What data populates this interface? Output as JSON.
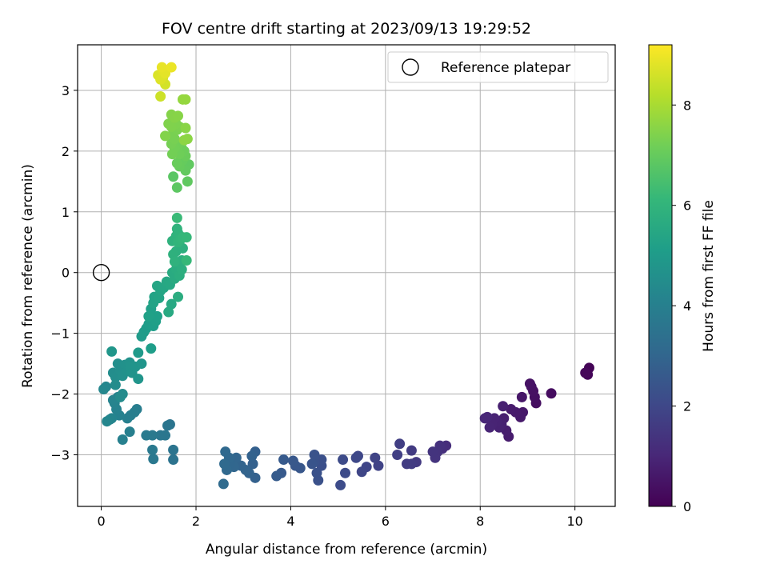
{
  "figure": {
    "title": "FOV centre drift starting at 2023/09/13 19:29:52",
    "xlabel": "Angular distance from reference (arcmin)",
    "ylabel": "Rotation from reference (arcmin)",
    "colorbar_label": "Hours from first FF file",
    "legend_label": "Reference platepar"
  },
  "chart_data": {
    "type": "scatter",
    "title": "FOV centre drift starting at 2023/09/13 19:29:52",
    "xlabel": "Angular distance from reference (arcmin)",
    "ylabel": "Rotation from reference (arcmin)",
    "xlim": [
      -0.5,
      10.85
    ],
    "ylim": [
      -3.85,
      3.75
    ],
    "xticks": [
      0,
      2,
      4,
      6,
      8,
      10
    ],
    "yticks": [
      -3,
      -2,
      -1,
      0,
      1,
      2,
      3
    ],
    "grid": true,
    "legend": {
      "position": "top-right",
      "entries": [
        "Reference platepar"
      ]
    },
    "reference_point": {
      "x": 0,
      "y": 0,
      "marker": "open-circle",
      "label": "Reference platepar"
    },
    "colorbar": {
      "label": "Hours from first FF file",
      "min": 0,
      "max": 9.2,
      "ticks": [
        0,
        2,
        4,
        6,
        8
      ],
      "colormap": "viridis"
    },
    "colormap_stops": [
      "#440154",
      "#482878",
      "#3e4989",
      "#31688e",
      "#26828e",
      "#1f9e89",
      "#35b779",
      "#6ece58",
      "#b5de2b",
      "#fde725"
    ],
    "points": [
      [
        10.3,
        -1.57,
        0.05
      ],
      [
        10.27,
        -1.68,
        0.1
      ],
      [
        10.22,
        -1.65,
        0.15
      ],
      [
        9.5,
        -1.99,
        0.3
      ],
      [
        9.18,
        -2.15,
        0.35
      ],
      [
        9.15,
        -2.05,
        0.38
      ],
      [
        9.12,
        -1.95,
        0.4
      ],
      [
        9.08,
        -1.88,
        0.42
      ],
      [
        9.05,
        -1.83,
        0.45
      ],
      [
        8.88,
        -2.05,
        0.55
      ],
      [
        8.9,
        -2.3,
        0.6
      ],
      [
        8.85,
        -2.38,
        0.62
      ],
      [
        8.75,
        -2.3,
        0.65
      ],
      [
        8.65,
        -2.25,
        0.68
      ],
      [
        8.6,
        -2.7,
        0.72
      ],
      [
        8.55,
        -2.6,
        0.75
      ],
      [
        8.5,
        -2.4,
        0.78
      ],
      [
        8.48,
        -2.2,
        0.8
      ],
      [
        8.45,
        -2.5,
        0.83
      ],
      [
        8.4,
        -2.55,
        0.86
      ],
      [
        8.35,
        -2.45,
        0.88
      ],
      [
        8.3,
        -2.4,
        0.9
      ],
      [
        8.25,
        -2.5,
        0.92
      ],
      [
        8.2,
        -2.55,
        0.95
      ],
      [
        8.15,
        -2.38,
        0.98
      ],
      [
        8.1,
        -2.4,
        1.0
      ],
      [
        7.28,
        -2.85,
        1.2
      ],
      [
        7.2,
        -2.9,
        1.25
      ],
      [
        7.15,
        -2.85,
        1.3
      ],
      [
        7.1,
        -2.95,
        1.35
      ],
      [
        7.05,
        -3.05,
        1.38
      ],
      [
        7.0,
        -2.95,
        1.4
      ],
      [
        6.65,
        -3.12,
        1.55
      ],
      [
        6.55,
        -3.15,
        1.6
      ],
      [
        6.55,
        -2.93,
        1.62
      ],
      [
        6.45,
        -3.15,
        1.65
      ],
      [
        6.3,
        -2.82,
        1.7
      ],
      [
        6.25,
        -3.0,
        1.72
      ],
      [
        5.85,
        -3.18,
        1.85
      ],
      [
        5.78,
        -3.05,
        1.88
      ],
      [
        5.6,
        -3.2,
        1.92
      ],
      [
        5.5,
        -3.28,
        1.95
      ],
      [
        5.42,
        -3.02,
        1.98
      ],
      [
        5.38,
        -3.05,
        2.0
      ],
      [
        5.15,
        -3.3,
        2.1
      ],
      [
        5.1,
        -3.08,
        2.12
      ],
      [
        5.05,
        -3.5,
        2.15
      ],
      [
        4.65,
        -3.18,
        2.25
      ],
      [
        4.65,
        -3.08,
        2.27
      ],
      [
        4.58,
        -3.42,
        2.3
      ],
      [
        4.55,
        -3.3,
        2.32
      ],
      [
        4.5,
        -3.12,
        2.35
      ],
      [
        4.5,
        -3.0,
        2.38
      ],
      [
        4.45,
        -3.15,
        2.4
      ],
      [
        4.2,
        -3.22,
        2.5
      ],
      [
        4.1,
        -3.18,
        2.52
      ],
      [
        4.05,
        -3.1,
        2.55
      ],
      [
        3.85,
        -3.08,
        2.6
      ],
      [
        3.8,
        -3.3,
        2.62
      ],
      [
        3.7,
        -3.35,
        2.65
      ],
      [
        3.25,
        -2.95,
        2.8
      ],
      [
        3.25,
        -3.38,
        2.82
      ],
      [
        3.2,
        -3.15,
        2.85
      ],
      [
        3.18,
        -3.02,
        2.88
      ],
      [
        3.12,
        -3.3,
        2.9
      ],
      [
        3.05,
        -3.25,
        2.92
      ],
      [
        2.95,
        -3.18,
        2.95
      ],
      [
        2.85,
        -3.05,
        3.0
      ],
      [
        2.8,
        -3.2,
        3.02
      ],
      [
        2.72,
        -3.15,
        3.05
      ],
      [
        2.7,
        -3.05,
        3.08
      ],
      [
        2.65,
        -3.25,
        3.1
      ],
      [
        2.62,
        -2.95,
        3.12
      ],
      [
        2.6,
        -3.15,
        3.15
      ],
      [
        2.58,
        -3.48,
        3.18
      ],
      [
        1.52,
        -3.08,
        3.5
      ],
      [
        1.52,
        -2.92,
        3.52
      ],
      [
        1.45,
        -2.5,
        3.55
      ],
      [
        1.4,
        -2.52,
        3.58
      ],
      [
        1.35,
        -2.68,
        3.6
      ],
      [
        1.25,
        -2.68,
        3.62
      ],
      [
        1.1,
        -3.07,
        3.7
      ],
      [
        1.08,
        -2.92,
        3.72
      ],
      [
        1.08,
        -2.68,
        3.75
      ],
      [
        0.95,
        -2.68,
        3.78
      ],
      [
        0.75,
        -2.25,
        3.9
      ],
      [
        0.7,
        -2.3,
        3.92
      ],
      [
        0.62,
        -2.35,
        3.95
      ],
      [
        0.6,
        -2.62,
        3.97
      ],
      [
        0.55,
        -2.4,
        3.98
      ],
      [
        0.45,
        -2.75,
        4.0
      ],
      [
        0.38,
        -2.35,
        4.05
      ],
      [
        0.35,
        -2.05,
        4.08
      ],
      [
        0.32,
        -2.25,
        4.1
      ],
      [
        0.28,
        -2.15,
        4.12
      ],
      [
        0.25,
        -2.1,
        4.15
      ],
      [
        0.22,
        -2.4,
        4.18
      ],
      [
        0.18,
        -2.42,
        4.2
      ],
      [
        0.12,
        -2.45,
        4.22
      ],
      [
        0.1,
        -1.88,
        4.25
      ],
      [
        0.05,
        -1.92,
        4.28
      ],
      [
        0.45,
        -2.0,
        4.4
      ],
      [
        0.4,
        -2.05,
        4.42
      ],
      [
        0.3,
        -1.85,
        4.45
      ],
      [
        0.25,
        -1.65,
        4.5
      ],
      [
        0.3,
        -1.72,
        4.52
      ],
      [
        0.35,
        -1.5,
        4.55
      ],
      [
        0.4,
        -1.62,
        4.58
      ],
      [
        0.45,
        -1.7,
        4.6
      ],
      [
        0.5,
        -1.52,
        4.62
      ],
      [
        0.55,
        -1.62,
        4.65
      ],
      [
        0.6,
        -1.48,
        4.67
      ],
      [
        0.62,
        -1.55,
        4.7
      ],
      [
        0.65,
        -1.65,
        4.72
      ],
      [
        0.72,
        -1.55,
        4.75
      ],
      [
        0.78,
        -1.75,
        4.78
      ],
      [
        0.85,
        -1.5,
        4.8
      ],
      [
        0.22,
        -1.3,
        4.82
      ],
      [
        0.78,
        -1.32,
        4.95
      ],
      [
        0.85,
        -1.05,
        5.0
      ],
      [
        0.9,
        -0.98,
        5.02
      ],
      [
        0.95,
        -0.92,
        5.05
      ],
      [
        1.0,
        -0.85,
        5.08
      ],
      [
        1.05,
        -1.25,
        5.1
      ],
      [
        1.1,
        -0.88,
        5.12
      ],
      [
        1.15,
        -0.8,
        5.15
      ],
      [
        1.18,
        -0.72,
        5.18
      ],
      [
        1.05,
        -0.6,
        5.2
      ],
      [
        1.0,
        -0.72,
        5.22
      ],
      [
        1.1,
        -0.5,
        5.3
      ],
      [
        1.12,
        -0.4,
        5.32
      ],
      [
        1.22,
        -0.42,
        5.35
      ],
      [
        1.25,
        -0.3,
        5.38
      ],
      [
        1.18,
        -0.22,
        5.4
      ],
      [
        1.32,
        -0.25,
        5.45
      ],
      [
        1.38,
        -0.15,
        5.48
      ],
      [
        1.45,
        -0.2,
        5.5
      ],
      [
        1.48,
        -0.52,
        5.52
      ],
      [
        1.42,
        -0.65,
        5.55
      ],
      [
        1.5,
        0.0,
        5.6
      ],
      [
        1.55,
        -0.1,
        5.62
      ],
      [
        1.6,
        0.1,
        5.65
      ],
      [
        1.58,
        0.05,
        5.68
      ],
      [
        1.62,
        -0.4,
        5.7
      ],
      [
        1.65,
        -0.05,
        5.72
      ],
      [
        1.7,
        0.05,
        5.75
      ],
      [
        1.7,
        0.2,
        5.78
      ],
      [
        1.72,
        0.4,
        5.8
      ],
      [
        1.58,
        0.35,
        5.82
      ],
      [
        1.52,
        0.3,
        5.85
      ],
      [
        1.55,
        0.18,
        5.88
      ],
      [
        1.5,
        0.52,
        5.9
      ],
      [
        1.58,
        0.6,
        5.92
      ],
      [
        1.62,
        0.65,
        5.95
      ],
      [
        1.6,
        0.72,
        5.97
      ],
      [
        1.62,
        0.5,
        6.0
      ],
      [
        1.68,
        0.55,
        6.05
      ],
      [
        1.72,
        0.58,
        6.1
      ],
      [
        1.8,
        0.58,
        6.12
      ],
      [
        1.8,
        0.2,
        6.15
      ],
      [
        1.6,
        0.9,
        6.2
      ],
      [
        1.52,
        1.58,
        6.8
      ],
      [
        1.6,
        1.4,
        6.85
      ],
      [
        1.82,
        1.5,
        6.9
      ],
      [
        1.85,
        1.78,
        6.92
      ],
      [
        1.78,
        1.68,
        6.95
      ],
      [
        1.72,
        1.85,
        7.0
      ],
      [
        1.65,
        1.75,
        7.02
      ],
      [
        1.6,
        1.8,
        7.05
      ],
      [
        1.78,
        1.92,
        7.08
      ],
      [
        1.75,
        2.0,
        7.1
      ],
      [
        1.7,
        2.05,
        7.12
      ],
      [
        1.65,
        1.95,
        7.15
      ],
      [
        1.62,
        2.1,
        7.18
      ],
      [
        1.55,
        2.05,
        7.2
      ],
      [
        1.5,
        1.95,
        7.22
      ],
      [
        1.48,
        2.12,
        7.25
      ],
      [
        1.55,
        2.2,
        7.28
      ],
      [
        1.52,
        2.3,
        7.3
      ],
      [
        1.6,
        2.35,
        7.32
      ],
      [
        1.65,
        2.4,
        7.35
      ],
      [
        1.58,
        2.45,
        7.38
      ],
      [
        1.48,
        2.4,
        7.4
      ],
      [
        1.42,
        2.45,
        7.42
      ],
      [
        1.35,
        2.25,
        7.45
      ],
      [
        1.48,
        2.6,
        7.48
      ],
      [
        1.55,
        2.55,
        7.5
      ],
      [
        1.62,
        2.58,
        7.52
      ],
      [
        1.78,
        2.38,
        7.55
      ],
      [
        1.82,
        2.2,
        7.58
      ],
      [
        1.75,
        2.18,
        7.6
      ],
      [
        1.72,
        2.85,
        7.7
      ],
      [
        1.78,
        2.85,
        7.72
      ],
      [
        1.25,
        2.9,
        8.5
      ],
      [
        1.35,
        3.1,
        8.6
      ],
      [
        1.3,
        3.2,
        8.65
      ],
      [
        1.2,
        3.25,
        8.7
      ],
      [
        1.25,
        3.18,
        8.75
      ],
      [
        1.3,
        3.32,
        8.8
      ],
      [
        1.35,
        3.28,
        8.85
      ],
      [
        1.28,
        3.38,
        8.9
      ],
      [
        1.48,
        3.38,
        8.95
      ]
    ]
  }
}
